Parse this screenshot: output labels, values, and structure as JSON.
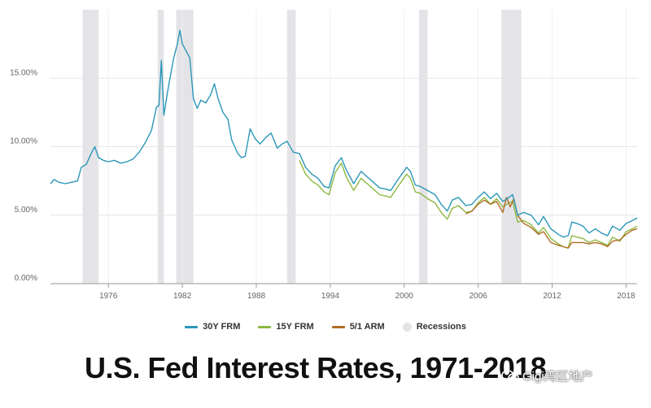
{
  "chart_data": {
    "type": "line",
    "title": "U.S. Fed Interest Rates, 1971-2018",
    "xlim": [
      1971.3,
      2018.9
    ],
    "ylim": [
      0,
      20
    ],
    "x_ticks": [
      1976,
      1982,
      1988,
      1994,
      2000,
      2006,
      2012,
      2018
    ],
    "x_tick_labels": [
      "1976",
      "1982",
      "1988",
      "1994",
      "2000",
      "2006",
      "2012",
      "2018"
    ],
    "y_ticks": [
      0,
      5,
      10,
      15
    ],
    "y_tick_labels": [
      "0.00%",
      "5.00%",
      "10.00%",
      "15.00%"
    ],
    "recessions": [
      [
        1973.9,
        1975.2
      ],
      [
        1980.0,
        1980.5
      ],
      [
        1981.5,
        1982.9
      ],
      [
        1990.5,
        1991.2
      ],
      [
        2001.2,
        2001.9
      ],
      [
        2007.9,
        2009.5
      ]
    ],
    "series": [
      {
        "name": "30Y FRM",
        "color": "#2b97b8",
        "points": [
          [
            1971.3,
            7.3
          ],
          [
            1971.6,
            7.6
          ],
          [
            1972.0,
            7.4
          ],
          [
            1972.5,
            7.3
          ],
          [
            1973.0,
            7.4
          ],
          [
            1973.5,
            7.5
          ],
          [
            1973.8,
            8.5
          ],
          [
            1974.2,
            8.7
          ],
          [
            1974.6,
            9.5
          ],
          [
            1974.9,
            10.0
          ],
          [
            1975.2,
            9.2
          ],
          [
            1975.6,
            9.0
          ],
          [
            1976.0,
            8.9
          ],
          [
            1976.5,
            9.0
          ],
          [
            1977.0,
            8.8
          ],
          [
            1977.5,
            8.9
          ],
          [
            1978.0,
            9.1
          ],
          [
            1978.5,
            9.6
          ],
          [
            1979.0,
            10.3
          ],
          [
            1979.5,
            11.2
          ],
          [
            1979.9,
            12.9
          ],
          [
            1980.1,
            13.0
          ],
          [
            1980.3,
            16.3
          ],
          [
            1980.5,
            12.3
          ],
          [
            1980.8,
            14.0
          ],
          [
            1981.0,
            15.0
          ],
          [
            1981.3,
            16.5
          ],
          [
            1981.6,
            17.5
          ],
          [
            1981.8,
            18.5
          ],
          [
            1982.0,
            17.5
          ],
          [
            1982.3,
            17.0
          ],
          [
            1982.6,
            16.5
          ],
          [
            1982.9,
            13.5
          ],
          [
            1983.2,
            12.8
          ],
          [
            1983.5,
            13.4
          ],
          [
            1983.9,
            13.2
          ],
          [
            1984.3,
            13.8
          ],
          [
            1984.6,
            14.6
          ],
          [
            1984.9,
            13.5
          ],
          [
            1985.3,
            12.5
          ],
          [
            1985.7,
            12.0
          ],
          [
            1986.0,
            10.5
          ],
          [
            1986.5,
            9.5
          ],
          [
            1986.8,
            9.2
          ],
          [
            1987.1,
            9.3
          ],
          [
            1987.5,
            11.3
          ],
          [
            1987.9,
            10.6
          ],
          [
            1988.3,
            10.2
          ],
          [
            1988.8,
            10.7
          ],
          [
            1989.2,
            11.0
          ],
          [
            1989.7,
            9.9
          ],
          [
            1990.1,
            10.2
          ],
          [
            1990.5,
            10.4
          ],
          [
            1991.0,
            9.6
          ],
          [
            1991.5,
            9.5
          ],
          [
            1992.0,
            8.5
          ],
          [
            1992.5,
            8.0
          ],
          [
            1993.0,
            7.7
          ],
          [
            1993.5,
            7.1
          ],
          [
            1993.9,
            7.0
          ],
          [
            1994.4,
            8.6
          ],
          [
            1994.9,
            9.2
          ],
          [
            1995.3,
            8.3
          ],
          [
            1995.9,
            7.3
          ],
          [
            1996.5,
            8.2
          ],
          [
            1997.0,
            7.8
          ],
          [
            1997.5,
            7.4
          ],
          [
            1998.0,
            7.0
          ],
          [
            1998.5,
            6.9
          ],
          [
            1998.9,
            6.8
          ],
          [
            1999.5,
            7.6
          ],
          [
            2000.2,
            8.5
          ],
          [
            2000.5,
            8.2
          ],
          [
            2000.9,
            7.2
          ],
          [
            2001.3,
            7.1
          ],
          [
            2001.9,
            6.8
          ],
          [
            2002.5,
            6.5
          ],
          [
            2003.0,
            5.8
          ],
          [
            2003.5,
            5.3
          ],
          [
            2003.9,
            6.1
          ],
          [
            2004.4,
            6.3
          ],
          [
            2005.0,
            5.7
          ],
          [
            2005.5,
            5.8
          ],
          [
            2006.0,
            6.3
          ],
          [
            2006.5,
            6.7
          ],
          [
            2007.0,
            6.2
          ],
          [
            2007.5,
            6.6
          ],
          [
            2008.0,
            6.0
          ],
          [
            2008.5,
            6.3
          ],
          [
            2008.8,
            6.5
          ],
          [
            2009.2,
            5.0
          ],
          [
            2009.7,
            5.2
          ],
          [
            2010.3,
            5.0
          ],
          [
            2010.9,
            4.3
          ],
          [
            2011.3,
            4.9
          ],
          [
            2011.9,
            4.0
          ],
          [
            2012.5,
            3.6
          ],
          [
            2012.9,
            3.4
          ],
          [
            2013.3,
            3.5
          ],
          [
            2013.6,
            4.5
          ],
          [
            2014.0,
            4.4
          ],
          [
            2014.5,
            4.2
          ],
          [
            2015.0,
            3.7
          ],
          [
            2015.5,
            4.0
          ],
          [
            2016.0,
            3.7
          ],
          [
            2016.5,
            3.5
          ],
          [
            2016.9,
            4.2
          ],
          [
            2017.5,
            3.9
          ],
          [
            2018.0,
            4.4
          ],
          [
            2018.5,
            4.6
          ],
          [
            2018.9,
            4.8
          ]
        ]
      },
      {
        "name": "15Y FRM",
        "color": "#8db840",
        "points": [
          [
            1991.5,
            9.0
          ],
          [
            1992.0,
            8.0
          ],
          [
            1992.5,
            7.5
          ],
          [
            1993.0,
            7.2
          ],
          [
            1993.5,
            6.7
          ],
          [
            1993.9,
            6.5
          ],
          [
            1994.4,
            8.1
          ],
          [
            1994.9,
            8.8
          ],
          [
            1995.3,
            7.8
          ],
          [
            1995.9,
            6.8
          ],
          [
            1996.5,
            7.7
          ],
          [
            1997.0,
            7.3
          ],
          [
            1997.5,
            6.9
          ],
          [
            1998.0,
            6.5
          ],
          [
            1998.5,
            6.4
          ],
          [
            1998.9,
            6.3
          ],
          [
            1999.5,
            7.1
          ],
          [
            2000.2,
            8.0
          ],
          [
            2000.5,
            7.7
          ],
          [
            2000.9,
            6.7
          ],
          [
            2001.3,
            6.6
          ],
          [
            2001.9,
            6.2
          ],
          [
            2002.5,
            5.9
          ],
          [
            2003.0,
            5.2
          ],
          [
            2003.5,
            4.7
          ],
          [
            2003.9,
            5.5
          ],
          [
            2004.4,
            5.7
          ],
          [
            2005.0,
            5.2
          ],
          [
            2005.5,
            5.3
          ],
          [
            2006.0,
            5.9
          ],
          [
            2006.5,
            6.3
          ],
          [
            2007.0,
            5.8
          ],
          [
            2007.5,
            6.2
          ],
          [
            2008.0,
            5.6
          ],
          [
            2008.5,
            5.9
          ],
          [
            2008.8,
            6.0
          ],
          [
            2009.2,
            4.5
          ],
          [
            2009.7,
            4.6
          ],
          [
            2010.3,
            4.3
          ],
          [
            2010.9,
            3.7
          ],
          [
            2011.3,
            4.1
          ],
          [
            2011.9,
            3.3
          ],
          [
            2012.5,
            2.9
          ],
          [
            2012.9,
            2.7
          ],
          [
            2013.3,
            2.6
          ],
          [
            2013.6,
            3.5
          ],
          [
            2014.0,
            3.4
          ],
          [
            2014.5,
            3.3
          ],
          [
            2015.0,
            3.0
          ],
          [
            2015.5,
            3.2
          ],
          [
            2016.0,
            3.0
          ],
          [
            2016.5,
            2.8
          ],
          [
            2016.9,
            3.4
          ],
          [
            2017.5,
            3.1
          ],
          [
            2018.0,
            3.8
          ],
          [
            2018.5,
            4.0
          ],
          [
            2018.9,
            4.2
          ]
        ]
      },
      {
        "name": "5/1 ARM",
        "color": "#b06d24",
        "points": [
          [
            2005.0,
            5.1
          ],
          [
            2005.5,
            5.3
          ],
          [
            2006.0,
            5.8
          ],
          [
            2006.5,
            6.1
          ],
          [
            2007.0,
            5.8
          ],
          [
            2007.5,
            6.0
          ],
          [
            2008.0,
            5.2
          ],
          [
            2008.3,
            6.3
          ],
          [
            2008.6,
            5.6
          ],
          [
            2008.9,
            6.2
          ],
          [
            2009.2,
            5.0
          ],
          [
            2009.7,
            4.4
          ],
          [
            2010.3,
            4.1
          ],
          [
            2010.9,
            3.6
          ],
          [
            2011.3,
            3.8
          ],
          [
            2011.9,
            3.0
          ],
          [
            2012.5,
            2.8
          ],
          [
            2012.9,
            2.7
          ],
          [
            2013.3,
            2.6
          ],
          [
            2013.6,
            3.0
          ],
          [
            2014.0,
            3.0
          ],
          [
            2014.5,
            3.0
          ],
          [
            2015.0,
            2.9
          ],
          [
            2015.5,
            3.0
          ],
          [
            2016.0,
            2.9
          ],
          [
            2016.5,
            2.7
          ],
          [
            2016.9,
            3.1
          ],
          [
            2017.5,
            3.2
          ],
          [
            2018.0,
            3.6
          ],
          [
            2018.5,
            3.9
          ],
          [
            2018.9,
            4.0
          ]
        ]
      }
    ]
  },
  "legend": {
    "items": [
      {
        "label": "30Y FRM",
        "color": "#2b97b8"
      },
      {
        "label": "15Y FRM",
        "color": "#8db840"
      },
      {
        "label": "5/1 ARM",
        "color": "#b06d24"
      }
    ],
    "recessions_label": "Recessions",
    "recessions_color": "#e4e4e8"
  },
  "caption": "U.S. Fed Interest Rates, 1971-2018",
  "watermark": "Gigi湾区地产"
}
